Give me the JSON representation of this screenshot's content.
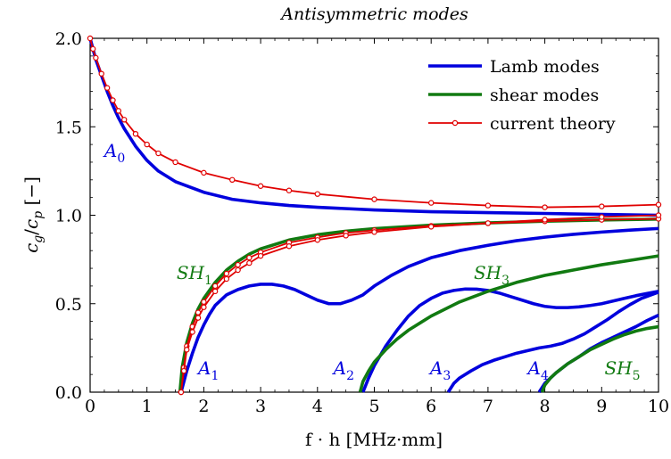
{
  "chart_data": {
    "type": "line",
    "title": "Antisymmetric modes",
    "xlabel": "f · h [MHz·mm]",
    "ylabel": "c_g/c_p [−]",
    "xlim": [
      0,
      10
    ],
    "ylim": [
      0,
      2
    ],
    "xticks": [
      "0",
      "1",
      "2",
      "3",
      "4",
      "5",
      "6",
      "7",
      "8",
      "9",
      "10"
    ],
    "yticks": [
      "0.0",
      "0.5",
      "1.0",
      "1.5",
      "2.0"
    ],
    "grid": false,
    "legend_position": "top-right",
    "colors": {
      "lamb": "#0000dd",
      "shear": "#117a11",
      "theory": "#e00000"
    },
    "legend": [
      {
        "label": "Lamb modes",
        "kind": "lamb"
      },
      {
        "label": "shear modes",
        "kind": "shear"
      },
      {
        "label": "current theory",
        "kind": "theory"
      }
    ],
    "mode_labels": [
      {
        "base": "A",
        "sub": "0",
        "x": 0.25,
        "y": 1.33,
        "kind": "lamb"
      },
      {
        "base": "SH",
        "sub": "1",
        "x": 1.52,
        "y": 0.64,
        "kind": "shear"
      },
      {
        "base": "A",
        "sub": "1",
        "x": 1.9,
        "y": 0.1,
        "kind": "lamb"
      },
      {
        "base": "A",
        "sub": "2",
        "x": 4.28,
        "y": 0.1,
        "kind": "lamb"
      },
      {
        "base": "SH",
        "sub": "3",
        "x": 6.75,
        "y": 0.64,
        "kind": "shear"
      },
      {
        "base": "A",
        "sub": "3",
        "x": 5.98,
        "y": 0.1,
        "kind": "lamb"
      },
      {
        "base": "A",
        "sub": "4",
        "x": 7.7,
        "y": 0.1,
        "kind": "lamb"
      },
      {
        "base": "SH",
        "sub": "5",
        "x": 9.05,
        "y": 0.1,
        "kind": "shear"
      }
    ],
    "series": [
      {
        "kind": "lamb",
        "mode": "A0",
        "x": [
          0.0,
          0.05,
          0.1,
          0.2,
          0.3,
          0.4,
          0.5,
          0.6,
          0.8,
          1.0,
          1.2,
          1.5,
          2.0,
          2.5,
          3.0,
          3.5,
          4.0,
          5.0,
          6.0,
          7.0,
          8.0,
          9.0,
          10.0
        ],
        "y": [
          2.0,
          1.94,
          1.88,
          1.79,
          1.7,
          1.62,
          1.55,
          1.49,
          1.39,
          1.31,
          1.25,
          1.19,
          1.13,
          1.09,
          1.07,
          1.055,
          1.045,
          1.03,
          1.02,
          1.015,
          1.01,
          1.005,
          1.0
        ]
      },
      {
        "kind": "lamb",
        "mode": "A1",
        "x": [
          1.6,
          1.7,
          1.8,
          1.9,
          2.0,
          2.1,
          2.2,
          2.4,
          2.6,
          2.8,
          3.0,
          3.2,
          3.4,
          3.6,
          3.8,
          4.0,
          4.2,
          4.4,
          4.6,
          4.8,
          5.0,
          5.3,
          5.6,
          6.0,
          6.5,
          7.0,
          7.5,
          8.0,
          8.5,
          9.0,
          9.5,
          10.0
        ],
        "y": [
          0.0,
          0.12,
          0.22,
          0.31,
          0.38,
          0.44,
          0.49,
          0.55,
          0.58,
          0.6,
          0.61,
          0.61,
          0.6,
          0.58,
          0.55,
          0.52,
          0.5,
          0.5,
          0.52,
          0.55,
          0.6,
          0.66,
          0.71,
          0.76,
          0.8,
          0.83,
          0.856,
          0.876,
          0.892,
          0.905,
          0.916,
          0.925
        ]
      },
      {
        "kind": "lamb",
        "mode": "A2",
        "x": [
          4.8,
          4.9,
          5.0,
          5.2,
          5.4,
          5.6,
          5.8,
          6.0,
          6.2,
          6.4,
          6.6,
          6.8,
          7.0,
          7.2,
          7.4,
          7.6,
          7.8,
          8.0,
          8.2,
          8.4,
          8.6,
          8.8,
          9.0,
          9.2,
          9.4,
          9.6,
          9.8,
          10.0
        ],
        "y": [
          0.0,
          0.08,
          0.15,
          0.26,
          0.35,
          0.43,
          0.49,
          0.53,
          0.56,
          0.575,
          0.583,
          0.582,
          0.575,
          0.56,
          0.54,
          0.52,
          0.5,
          0.485,
          0.478,
          0.478,
          0.482,
          0.49,
          0.5,
          0.515,
          0.53,
          0.545,
          0.558,
          0.57
        ]
      },
      {
        "kind": "lamb",
        "mode": "A3",
        "x": [
          6.3,
          6.4,
          6.5,
          6.7,
          6.9,
          7.1,
          7.3,
          7.5,
          7.7,
          7.9,
          8.1,
          8.3,
          8.5,
          8.7,
          8.9,
          9.1,
          9.3,
          9.5,
          9.7,
          10.0
        ],
        "y": [
          0.0,
          0.05,
          0.08,
          0.12,
          0.155,
          0.18,
          0.2,
          0.22,
          0.235,
          0.25,
          0.26,
          0.275,
          0.3,
          0.33,
          0.37,
          0.41,
          0.455,
          0.495,
          0.53,
          0.565
        ]
      },
      {
        "kind": "lamb",
        "mode": "A4",
        "x": [
          7.9,
          8.0,
          8.2,
          8.4,
          8.6,
          8.8,
          9.0,
          9.2,
          9.4,
          9.6,
          9.8,
          10.0
        ],
        "y": [
          0.0,
          0.05,
          0.11,
          0.16,
          0.2,
          0.245,
          0.28,
          0.31,
          0.34,
          0.37,
          0.405,
          0.435
        ]
      },
      {
        "kind": "shear",
        "mode": "SH1",
        "x": [
          1.58,
          1.62,
          1.7,
          1.8,
          1.9,
          2.0,
          2.2,
          2.4,
          2.6,
          2.8,
          3.0,
          3.5,
          4.0,
          4.5,
          5.0,
          6.0,
          7.0,
          8.0,
          9.0,
          10.0
        ],
        "y": [
          0.0,
          0.14,
          0.28,
          0.39,
          0.47,
          0.53,
          0.62,
          0.69,
          0.74,
          0.78,
          0.81,
          0.86,
          0.89,
          0.91,
          0.924,
          0.944,
          0.957,
          0.966,
          0.973,
          0.978
        ]
      },
      {
        "kind": "shear",
        "mode": "SH3",
        "x": [
          4.75,
          4.8,
          4.9,
          5.0,
          5.2,
          5.4,
          5.6,
          5.8,
          6.0,
          6.5,
          7.0,
          7.5,
          8.0,
          8.5,
          9.0,
          9.5,
          10.0
        ],
        "y": [
          0.0,
          0.06,
          0.12,
          0.17,
          0.24,
          0.3,
          0.35,
          0.39,
          0.43,
          0.51,
          0.57,
          0.62,
          0.66,
          0.69,
          0.72,
          0.745,
          0.77
        ]
      },
      {
        "kind": "shear",
        "mode": "SH5",
        "x": [
          7.95,
          8.0,
          8.1,
          8.2,
          8.4,
          8.6,
          8.8,
          9.0,
          9.2,
          9.4,
          9.6,
          9.8,
          10.0
        ],
        "y": [
          0.0,
          0.04,
          0.08,
          0.11,
          0.16,
          0.2,
          0.24,
          0.27,
          0.3,
          0.325,
          0.345,
          0.36,
          0.37
        ]
      },
      {
        "kind": "theory",
        "mode": "A0",
        "x": [
          0.0,
          0.05,
          0.1,
          0.2,
          0.3,
          0.4,
          0.5,
          0.6,
          0.8,
          1.0,
          1.2,
          1.5,
          2.0,
          2.5,
          3.0,
          3.5,
          4.0,
          5.0,
          6.0,
          7.0,
          8.0,
          9.0,
          10.0
        ],
        "y": [
          2.0,
          1.94,
          1.89,
          1.8,
          1.72,
          1.65,
          1.59,
          1.54,
          1.46,
          1.4,
          1.35,
          1.3,
          1.24,
          1.2,
          1.165,
          1.14,
          1.12,
          1.09,
          1.07,
          1.055,
          1.045,
          1.05,
          1.06
        ]
      },
      {
        "kind": "theory",
        "mode": "SH1-A",
        "x": [
          1.6,
          1.65,
          1.7,
          1.8,
          1.9,
          2.0,
          2.2,
          2.4,
          2.6,
          2.8,
          3.0,
          3.5,
          4.0,
          4.5,
          5.0,
          6.0,
          7.0,
          8.0,
          9.0,
          10.0
        ],
        "y": [
          0.0,
          0.14,
          0.26,
          0.37,
          0.45,
          0.51,
          0.6,
          0.67,
          0.72,
          0.76,
          0.79,
          0.845,
          0.875,
          0.9,
          0.915,
          0.94,
          0.955,
          0.966,
          0.974,
          0.98
        ]
      },
      {
        "kind": "theory",
        "mode": "SH1-B",
        "x": [
          1.6,
          1.65,
          1.7,
          1.8,
          1.9,
          2.0,
          2.2,
          2.4,
          2.6,
          2.8,
          3.0,
          3.5,
          4.0,
          4.5,
          5.0,
          6.0,
          7.0,
          8.0,
          9.0,
          10.0
        ],
        "y": [
          0.0,
          0.12,
          0.24,
          0.34,
          0.42,
          0.48,
          0.57,
          0.64,
          0.69,
          0.73,
          0.77,
          0.825,
          0.86,
          0.885,
          0.905,
          0.935,
          0.955,
          0.975,
          0.99,
          1.0
        ]
      }
    ]
  }
}
